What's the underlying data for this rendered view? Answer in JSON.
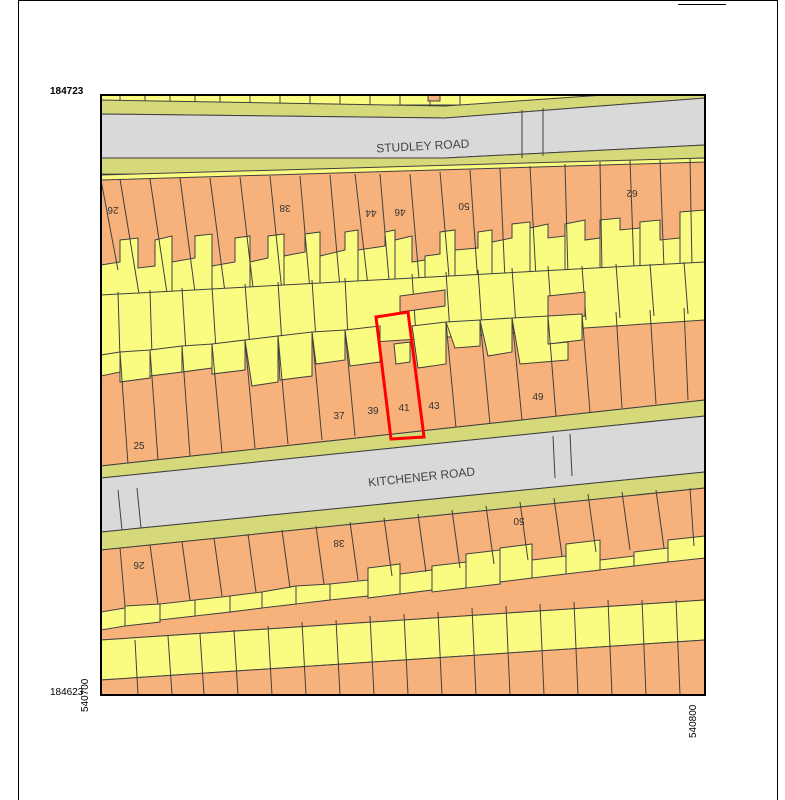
{
  "map": {
    "coords": {
      "y_top": "184723",
      "y_bottom": "184623",
      "x_left": "540700",
      "x_right": "540800"
    },
    "roads": {
      "north": "STUDLEY ROAD",
      "middle": "KITCHENER ROAD"
    },
    "house_numbers": {
      "studley_south": [
        "26",
        "38",
        "44",
        "46",
        "50",
        "62"
      ],
      "kitchener_north": [
        "25",
        "37",
        "39",
        "41",
        "43",
        "49"
      ],
      "kitchener_south": [
        "26",
        "38",
        "50"
      ]
    },
    "highlighted_plot": "41",
    "colors": {
      "road": "#d9d9d9",
      "verge": "#d6d97a",
      "building": "#f6b27a",
      "garden": "#fafc82",
      "outline": "#404040",
      "highlight": "#ff0000"
    }
  }
}
